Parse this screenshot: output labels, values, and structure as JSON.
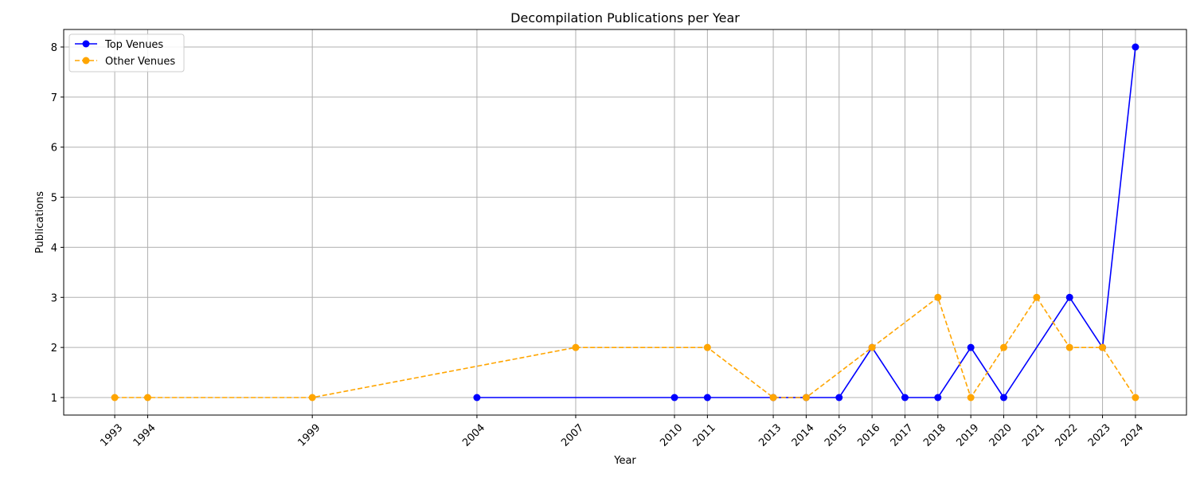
{
  "chart_data": {
    "type": "line",
    "title": "Decompilation Publications per Year",
    "xlabel": "Year",
    "ylabel": "Publications",
    "x_ticks": [
      1993,
      1994,
      1999,
      2004,
      2007,
      2010,
      2011,
      2013,
      2014,
      2015,
      2016,
      2017,
      2018,
      2019,
      2020,
      2021,
      2022,
      2023,
      2024
    ],
    "y_ticks": [
      1,
      2,
      3,
      4,
      5,
      6,
      7,
      8
    ],
    "xlim": [
      1991.45,
      2025.55
    ],
    "ylim": [
      0.65,
      8.35
    ],
    "grid": true,
    "legend_position": "upper-left",
    "series": [
      {
        "name": "Top Venues",
        "color": "#0000ff",
        "style": "solid",
        "marker": "circle",
        "x": [
          2004,
          2010,
          2011,
          2013,
          2014,
          2015,
          2016,
          2017,
          2018,
          2019,
          2020,
          2022,
          2023,
          2024
        ],
        "y": [
          1,
          1,
          1,
          1,
          1,
          1,
          2,
          1,
          1,
          2,
          1,
          3,
          2,
          8
        ]
      },
      {
        "name": "Other Venues",
        "color": "#ffa500",
        "style": "dashed",
        "marker": "circle",
        "x": [
          1993,
          1994,
          1999,
          2007,
          2011,
          2013,
          2014,
          2016,
          2018,
          2019,
          2020,
          2021,
          2022,
          2023,
          2024
        ],
        "y": [
          1,
          1,
          1,
          2,
          2,
          1,
          1,
          2,
          3,
          1,
          2,
          3,
          2,
          2,
          1
        ]
      }
    ]
  }
}
